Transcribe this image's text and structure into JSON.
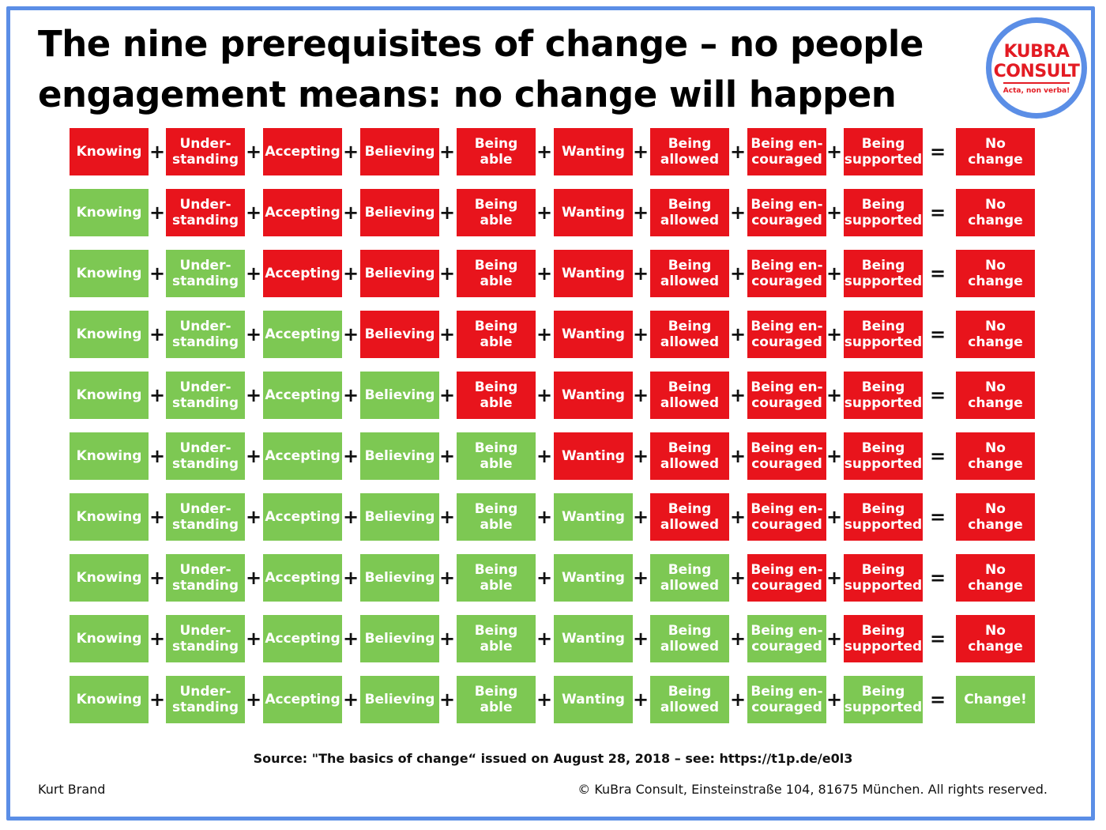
{
  "title": "The nine prerequisites of change – no people engagement means: no change will happen",
  "logo": {
    "line1": "KUBRA",
    "line2": "CONSULT",
    "motto": "Acta, non verba!"
  },
  "colors": {
    "red": "#e8141c",
    "green": "#7dc853",
    "frame": "#5b8ee6"
  },
  "labels": [
    "Knowing",
    "Under-\nstanding",
    "Accepting",
    "Believing",
    "Being\nable",
    "Wanting",
    "Being\nallowed",
    "Being en-\ncouraged",
    "Being\nsupported"
  ],
  "plus_symbol": "+",
  "equals_symbol": "=",
  "result_no_change": "No\nchange",
  "result_change": "Change!",
  "rows_green_count": [
    0,
    1,
    2,
    3,
    4,
    5,
    6,
    7,
    8,
    9
  ],
  "source": "Source: \"The basics of change“ issued on August 28, 2018 – see: https://t1p.de/e0l3",
  "author": "Kurt Brand",
  "copyright": "© KuBra Consult, Einsteinstraße 104, 81675 München. All rights reserved."
}
